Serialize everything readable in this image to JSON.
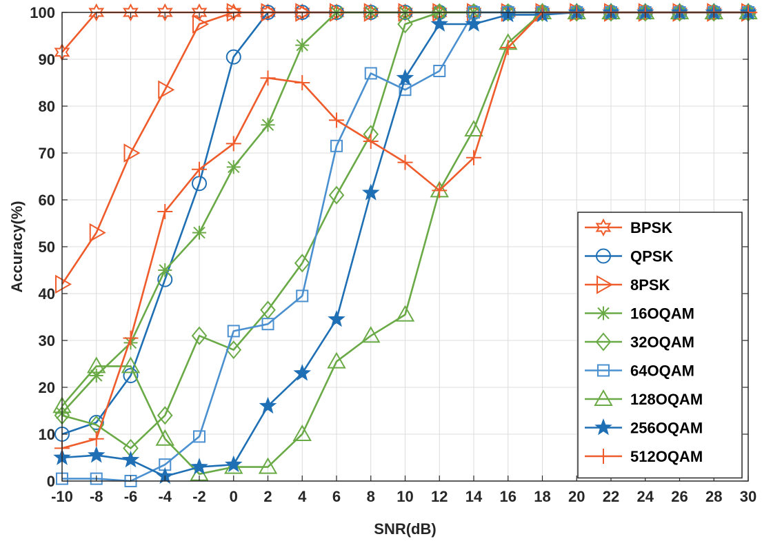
{
  "chart_data": {
    "type": "line",
    "title": "",
    "xlabel": "SNR(dB)",
    "ylabel": "Accuracy(%)",
    "xlim": [
      -10,
      30
    ],
    "ylim": [
      0,
      100
    ],
    "grid": true,
    "legend_position": "bottom-right",
    "x": [
      -10,
      -8,
      -6,
      -4,
      -2,
      0,
      2,
      4,
      6,
      8,
      10,
      12,
      14,
      16,
      18,
      20,
      22,
      24,
      26,
      28,
      30
    ],
    "x_ticks": [
      "-10",
      "-8",
      "-6",
      "-4",
      "-2",
      "0",
      "2",
      "4",
      "6",
      "8",
      "10",
      "12",
      "14",
      "16",
      "18",
      "20",
      "22",
      "24",
      "26",
      "28",
      "30"
    ],
    "y_ticks": [
      "0",
      "10",
      "20",
      "30",
      "40",
      "50",
      "60",
      "70",
      "80",
      "90",
      "100"
    ],
    "series": [
      {
        "name": "BPSK",
        "color": "#ef5b2a",
        "marker": "hexagram",
        "values": [
          91.5,
          100,
          100,
          100,
          100,
          100,
          100,
          100,
          100,
          100,
          100,
          100,
          100,
          100,
          100,
          100,
          100,
          100,
          100,
          100,
          100
        ]
      },
      {
        "name": "QPSK",
        "color": "#1f6fb5",
        "marker": "circle",
        "values": [
          10,
          12.5,
          22.5,
          43,
          63.5,
          90.5,
          100,
          100,
          100,
          100,
          100,
          100,
          100,
          100,
          100,
          100,
          100,
          100,
          100,
          100,
          100
        ]
      },
      {
        "name": "8PSK",
        "color": "#ef5b2a",
        "marker": "triangle-right",
        "values": [
          42,
          53,
          70,
          83.5,
          97.5,
          100,
          100,
          100,
          100,
          100,
          100,
          100,
          100,
          100,
          100,
          100,
          100,
          100,
          100,
          100,
          100
        ]
      },
      {
        "name": "16OQAM",
        "color": "#6aaa46",
        "marker": "asterisk",
        "values": [
          14.5,
          22.5,
          29.5,
          45,
          53,
          67,
          76,
          93,
          100,
          100,
          100,
          100,
          100,
          100,
          100,
          100,
          100,
          100,
          100,
          100,
          100
        ]
      },
      {
        "name": "32OQAM",
        "color": "#6aaa46",
        "marker": "diamond",
        "values": [
          14,
          12,
          7,
          14,
          31,
          28,
          36.5,
          46.5,
          61,
          74,
          97.5,
          100,
          100,
          100,
          100,
          100,
          100,
          100,
          100,
          100,
          100
        ]
      },
      {
        "name": "64OQAM",
        "color": "#4a90d0",
        "marker": "square",
        "values": [
          0.5,
          0.5,
          0,
          3.5,
          9.5,
          32,
          33.5,
          39.5,
          71.5,
          87,
          83.5,
          87.5,
          100,
          100,
          100,
          100,
          100,
          100,
          100,
          100,
          100
        ]
      },
      {
        "name": "128OQAM",
        "color": "#6aaa46",
        "marker": "triangle-up",
        "values": [
          16,
          24.5,
          24.5,
          9,
          1.5,
          3,
          3,
          10,
          25.5,
          31,
          35.5,
          62,
          75,
          93.5,
          100,
          100,
          100,
          100,
          100,
          100,
          100
        ]
      },
      {
        "name": "256OQAM",
        "color": "#1f6fb5",
        "marker": "pentagram",
        "values": [
          5,
          5.5,
          4.5,
          1,
          3,
          3.5,
          16,
          23,
          34.5,
          61.5,
          86,
          97.5,
          97.5,
          99.5,
          99.5,
          100,
          100,
          100,
          100,
          100,
          100
        ]
      },
      {
        "name": "512OQAM",
        "color": "#ef5b2a",
        "marker": "plus",
        "values": [
          7,
          9,
          30.5,
          57.5,
          66.5,
          72,
          86,
          85,
          77,
          72.5,
          68,
          62,
          69,
          92.5,
          100,
          100,
          100,
          100,
          100,
          100,
          100
        ]
      }
    ]
  }
}
